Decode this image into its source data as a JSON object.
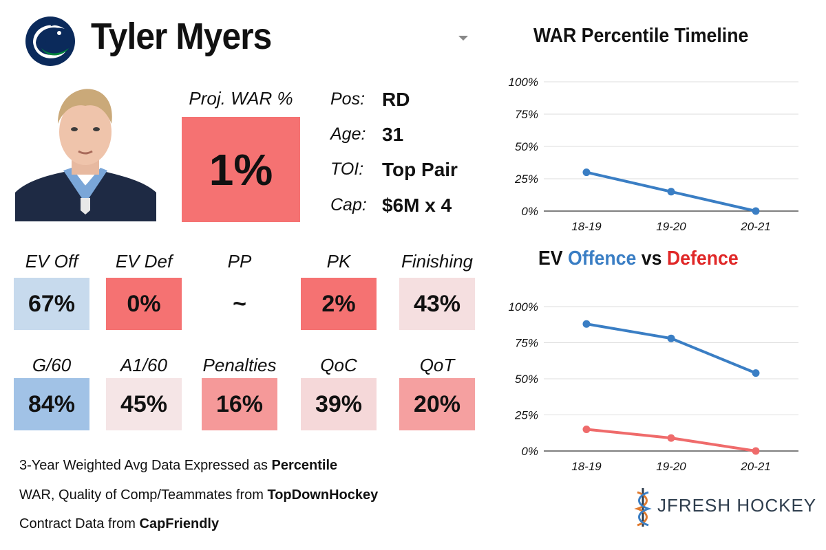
{
  "header": {
    "player_name": "Tyler Myers",
    "team_logo": "canucks-orca-logo-icon",
    "dropdown_icon": "chevron-down-icon"
  },
  "player": {
    "photo": "player-headshot-image",
    "proj_war_label": "Proj. WAR %",
    "proj_war_value": "1%",
    "proj_war_color": "#f57272",
    "info": [
      {
        "label": "Pos:",
        "value": "RD"
      },
      {
        "label": "Age:",
        "value": "31"
      },
      {
        "label": "TOI:",
        "value": "Top Pair"
      },
      {
        "label": "Cap:",
        "value": "$6M x 4"
      }
    ]
  },
  "stats_row1": [
    {
      "label": "EV Off",
      "value": "67%",
      "color": "#c7daed"
    },
    {
      "label": "EV Def",
      "value": "0%",
      "color": "#f57272"
    },
    {
      "label": "PP",
      "value": "~",
      "color": "#ffffff"
    },
    {
      "label": "PK",
      "value": "2%",
      "color": "#f57272"
    },
    {
      "label": "Finishing",
      "value": "43%",
      "color": "#f5dfe0"
    }
  ],
  "stats_row2": [
    {
      "label": "G/60",
      "value": "84%",
      "color": "#a1c2e6"
    },
    {
      "label": "A1/60",
      "value": "45%",
      "color": "#f5e5e6"
    },
    {
      "label": "Penalties",
      "value": "16%",
      "color": "#f59999"
    },
    {
      "label": "QoC",
      "value": "39%",
      "color": "#f5d8d9"
    },
    {
      "label": "QoT",
      "value": "20%",
      "color": "#f5a0a0"
    }
  ],
  "footer": {
    "line1_prefix": "3-Year Weighted Avg Data Expressed as ",
    "line1_bold": "Percentile",
    "line2_prefix": "WAR, Quality of Comp/Teammates from ",
    "line2_bold": "TopDownHockey",
    "line3_prefix": "Contract Data from ",
    "line3_bold": "CapFriendly"
  },
  "brand": {
    "name": "JFRESH HOCKEY",
    "icon": "jfresh-logo-icon"
  },
  "colors": {
    "offence": "#3a7ec4",
    "defence": "#e02828",
    "defence_line": "#ef6b6b",
    "grid": "#dddddd"
  },
  "chart_data": [
    {
      "type": "line",
      "title": "WAR Percentile Timeline",
      "categories": [
        "18-19",
        "19-20",
        "20-21"
      ],
      "series": [
        {
          "name": "WAR Percentile",
          "values": [
            30,
            15,
            0
          ]
        }
      ],
      "yticks": [
        "100%",
        "75%",
        "50%",
        "25%",
        "0%"
      ],
      "ylim": [
        0,
        100
      ],
      "grid": true
    },
    {
      "type": "line",
      "title_parts": [
        {
          "text": "EV ",
          "role": "plain"
        },
        {
          "text": "Offence",
          "role": "offence"
        },
        {
          "text": " vs ",
          "role": "plain"
        },
        {
          "text": "Defence",
          "role": "defence"
        }
      ],
      "categories": [
        "18-19",
        "19-20",
        "20-21"
      ],
      "series": [
        {
          "name": "Offence",
          "values": [
            88,
            78,
            54
          ]
        },
        {
          "name": "Defence",
          "values": [
            15,
            9,
            0
          ]
        }
      ],
      "yticks": [
        "100%",
        "75%",
        "50%",
        "25%",
        "0%"
      ],
      "ylim": [
        0,
        100
      ],
      "grid": true
    }
  ]
}
